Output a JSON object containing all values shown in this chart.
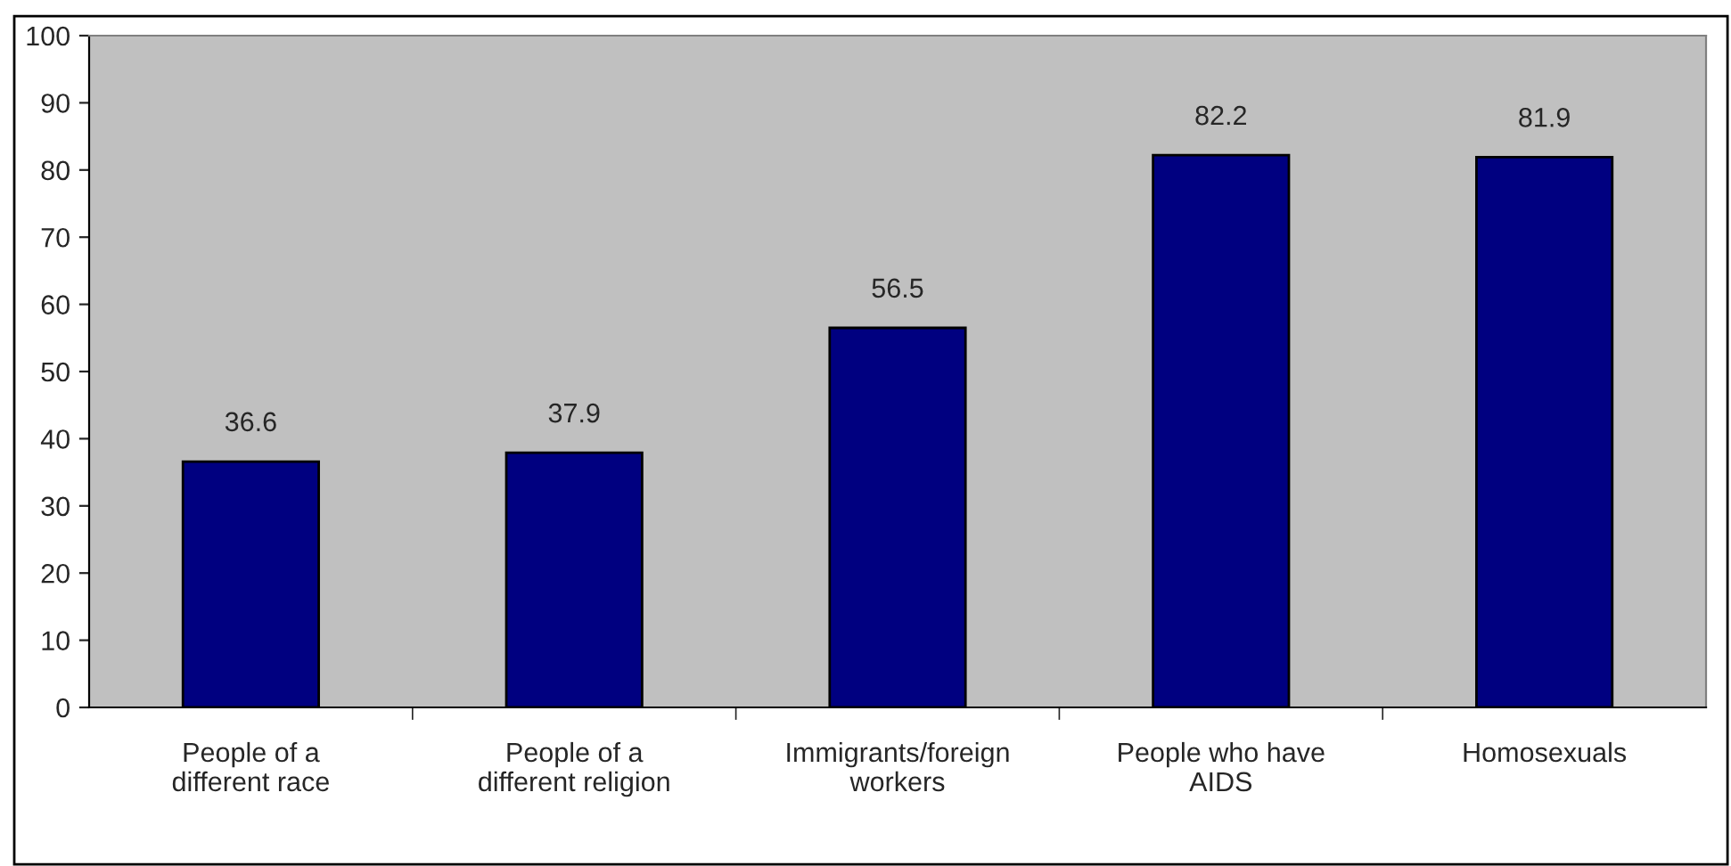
{
  "chart_data": {
    "type": "bar",
    "categories": [
      "People of a\ndifferent race",
      "People of a\ndifferent religion",
      "Immigrants/foreign\nworkers",
      "People who have\nAIDS",
      "Homosexuals"
    ],
    "values": [
      36.6,
      37.9,
      56.5,
      82.2,
      81.9
    ],
    "color": "#000080",
    "ylim": [
      0,
      100
    ],
    "yticks": [
      0,
      10,
      20,
      30,
      40,
      50,
      60,
      70,
      80,
      90,
      100
    ],
    "data_labels": true
  }
}
